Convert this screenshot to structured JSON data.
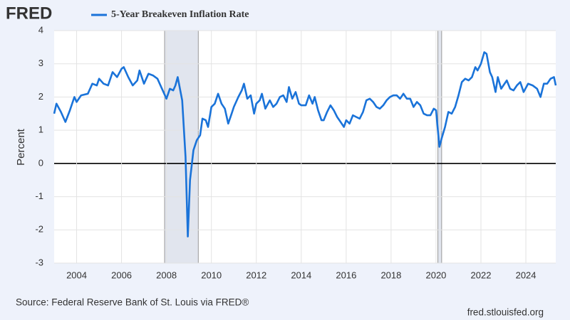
{
  "brand": "FRED",
  "chart_data": {
    "type": "line",
    "title": "5-Year Breakeven Inflation Rate",
    "y_label": "Percent",
    "source": "Source: Federal Reserve Bank of St. Louis via FRED®",
    "url": "fred.stlouisfed.org",
    "xlim": [
      2003.0,
      2025.33
    ],
    "ylim": [
      -3,
      4
    ],
    "xticks": [
      2004,
      2006,
      2008,
      2010,
      2012,
      2014,
      2016,
      2018,
      2020,
      2022,
      2024
    ],
    "yticks": [
      -3,
      -2,
      -1,
      0,
      1,
      2,
      3,
      4
    ],
    "grid": true,
    "recessions": [
      [
        2007.917,
        2009.417
      ],
      [
        2020.083,
        2020.25
      ]
    ],
    "series": [
      {
        "name": "5-Year Breakeven Inflation Rate",
        "color": "#1a73d9",
        "x": [
          2003.0,
          2003.1,
          2003.3,
          2003.5,
          2003.7,
          2003.9,
          2004.0,
          2004.2,
          2004.5,
          2004.7,
          2004.9,
          2005.0,
          2005.2,
          2005.4,
          2005.6,
          2005.8,
          2006.0,
          2006.1,
          2006.3,
          2006.5,
          2006.7,
          2006.8,
          2007.0,
          2007.2,
          2007.4,
          2007.6,
          2008.0,
          2008.15,
          2008.3,
          2008.4,
          2008.5,
          2008.7,
          2008.85,
          2008.95,
          2009.05,
          2009.2,
          2009.35,
          2009.5,
          2009.6,
          2009.75,
          2009.85,
          2010.0,
          2010.15,
          2010.3,
          2010.45,
          2010.6,
          2010.75,
          2010.9,
          2011.0,
          2011.2,
          2011.35,
          2011.45,
          2011.6,
          2011.75,
          2011.9,
          2012.0,
          2012.15,
          2012.25,
          2012.4,
          2012.6,
          2012.75,
          2012.9,
          2013.05,
          2013.2,
          2013.35,
          2013.45,
          2013.6,
          2013.75,
          2013.9,
          2014.0,
          2014.2,
          2014.35,
          2014.5,
          2014.6,
          2014.75,
          2014.9,
          2015.0,
          2015.15,
          2015.3,
          2015.45,
          2015.6,
          2015.75,
          2015.9,
          2016.0,
          2016.15,
          2016.3,
          2016.45,
          2016.6,
          2016.75,
          2016.9,
          2017.05,
          2017.2,
          2017.35,
          2017.5,
          2017.65,
          2017.8,
          2017.95,
          2018.1,
          2018.25,
          2018.4,
          2018.55,
          2018.7,
          2018.85,
          2019.0,
          2019.15,
          2019.3,
          2019.45,
          2019.6,
          2019.75,
          2019.9,
          2020.0,
          2020.15,
          2020.25,
          2020.4,
          2020.55,
          2020.7,
          2020.85,
          2021.0,
          2021.15,
          2021.3,
          2021.45,
          2021.6,
          2021.75,
          2021.85,
          2022.0,
          2022.15,
          2022.25,
          2022.4,
          2022.5,
          2022.65,
          2022.75,
          2022.9,
          2023.0,
          2023.15,
          2023.3,
          2023.45,
          2023.6,
          2023.75,
          2023.9,
          2024.1,
          2024.3,
          2024.5,
          2024.65,
          2024.8,
          2024.95,
          2025.1,
          2025.25,
          2025.33
        ],
        "values": [
          1.5,
          1.8,
          1.55,
          1.25,
          1.6,
          2.0,
          1.85,
          2.05,
          2.1,
          2.4,
          2.35,
          2.55,
          2.4,
          2.35,
          2.75,
          2.6,
          2.85,
          2.9,
          2.6,
          2.35,
          2.5,
          2.8,
          2.4,
          2.7,
          2.65,
          2.55,
          1.95,
          2.25,
          2.2,
          2.35,
          2.6,
          1.9,
          0.2,
          -2.2,
          -0.5,
          0.4,
          0.7,
          0.85,
          1.35,
          1.3,
          1.1,
          1.7,
          1.8,
          2.1,
          1.8,
          1.65,
          1.2,
          1.5,
          1.7,
          2.0,
          2.2,
          2.4,
          1.95,
          2.05,
          1.5,
          1.8,
          1.9,
          2.1,
          1.65,
          1.9,
          1.7,
          1.8,
          2.0,
          2.05,
          1.85,
          2.3,
          1.95,
          2.15,
          1.8,
          1.75,
          1.75,
          2.05,
          1.8,
          2.0,
          1.6,
          1.3,
          1.3,
          1.55,
          1.75,
          1.6,
          1.4,
          1.25,
          1.1,
          1.3,
          1.2,
          1.45,
          1.4,
          1.35,
          1.55,
          1.9,
          1.95,
          1.85,
          1.7,
          1.65,
          1.75,
          1.9,
          2.0,
          2.05,
          2.05,
          1.95,
          2.1,
          1.95,
          1.95,
          1.7,
          1.85,
          1.75,
          1.5,
          1.45,
          1.45,
          1.65,
          1.6,
          0.5,
          0.75,
          1.1,
          1.55,
          1.5,
          1.7,
          2.05,
          2.45,
          2.55,
          2.5,
          2.6,
          2.9,
          2.8,
          3.0,
          3.35,
          3.3,
          2.75,
          2.6,
          2.15,
          2.6,
          2.25,
          2.35,
          2.5,
          2.25,
          2.2,
          2.35,
          2.45,
          2.15,
          2.4,
          2.35,
          2.25,
          2.0,
          2.4,
          2.4,
          2.55,
          2.6,
          2.35
        ]
      }
    ]
  }
}
